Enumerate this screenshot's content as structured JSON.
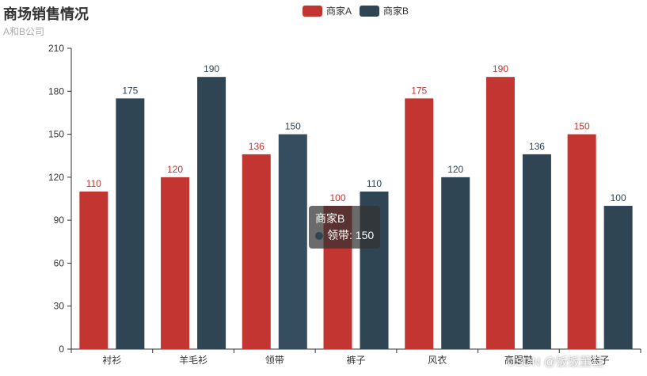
{
  "chart_data": {
    "type": "bar",
    "title": "商场销售情况",
    "subtitle": "A和B公司",
    "categories": [
      "衬衫",
      "羊毛衫",
      "领带",
      "裤子",
      "风衣",
      "高跟鞋",
      "袜子"
    ],
    "series": [
      {
        "name": "商家A",
        "color": "#c23531",
        "values": [
          110,
          120,
          136,
          100,
          175,
          190,
          150
        ]
      },
      {
        "name": "商家B",
        "color": "#2f4554",
        "values": [
          175,
          190,
          150,
          110,
          120,
          136,
          100
        ]
      }
    ],
    "yticks": [
      0,
      30,
      60,
      90,
      120,
      150,
      180,
      210
    ],
    "ylim": [
      0,
      210
    ],
    "legend_position": "top-center"
  },
  "tooltip": {
    "series": "商家B",
    "text": "领带: 150",
    "color": "#2f4554"
  },
  "watermark": "CSDN @饭饭董鞋"
}
